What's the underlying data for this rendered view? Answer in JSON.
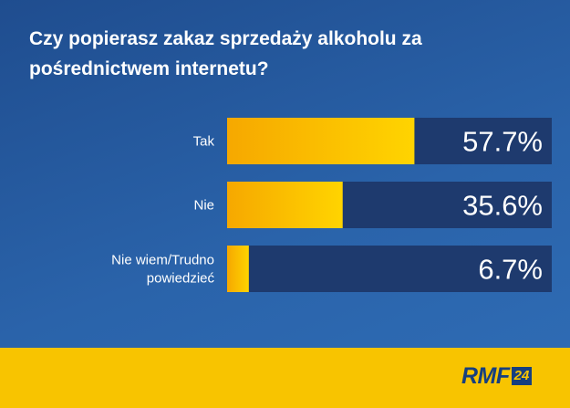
{
  "chart_data": {
    "type": "bar",
    "orientation": "horizontal",
    "title": "Czy popierasz zakaz sprzedaży alkoholu za pośrednictwem internetu?",
    "categories": [
      "Tak",
      "Nie",
      "Nie wiem/Trudno powiedzieć"
    ],
    "values": [
      57.7,
      35.6,
      6.7
    ],
    "value_labels": [
      "57.7%",
      "35.6%",
      "6.7%"
    ],
    "xlim": [
      0,
      100
    ],
    "grid": false,
    "legend": "none"
  },
  "colors": {
    "bar_fill": "#f9c000",
    "bar_track": "#1e3a6e",
    "background": "#2a5ea6",
    "footer": "#f8c400",
    "text": "#ffffff"
  },
  "branding": {
    "logo_text": "RMF",
    "logo_number": "24"
  }
}
